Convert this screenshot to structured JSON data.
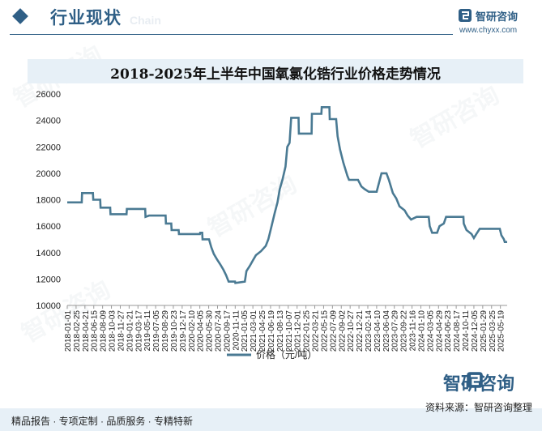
{
  "header": {
    "section_title": "行业现状",
    "section_en": "Chain",
    "brand_name": "智研咨询",
    "brand_url": "www.chyxx.com"
  },
  "chart_title": "2018-2025年上半年中国氧氯化锆行业价格走势情况",
  "legend_label": "价格（元/吨）",
  "watermark": "智研咨询",
  "footer": {
    "left": "精品报告 · 专项定制 · 品质服务 · 专精特新",
    "right": "资料来源：智研咨询整理",
    "brand": "智研咨询"
  },
  "colors": {
    "line": "#4a7a93",
    "accent": "#2f5f86"
  },
  "chart_data": {
    "type": "line",
    "title": "2018-2025年上半年中国氧氯化锆行业价格走势情况",
    "ylim": [
      10000,
      26000
    ],
    "yticks": [
      10000,
      12000,
      14000,
      16000,
      18000,
      20000,
      22000,
      24000,
      26000
    ],
    "xlim": [
      "2018-01-01",
      "2025-06-30"
    ],
    "x_ticks": [
      "2018-01-01",
      "2018-02-25",
      "2018-04-21",
      "2018-06-15",
      "2018-08-09",
      "2018-10-03",
      "2018-11-27",
      "2019-01-21",
      "2019-03-17",
      "2019-05-11",
      "2019-07-05",
      "2019-08-29",
      "2019-10-23",
      "2019-12-17",
      "2020-02-10",
      "2020-04-05",
      "2020-05-30",
      "2020-07-24",
      "2020-09-17",
      "2020-11-11",
      "2021-01-05",
      "2021-03-01",
      "2021-04-25",
      "2021-06-19",
      "2021-08-13",
      "2021-10-07",
      "2021-12-01",
      "2022-01-25",
      "2022-03-21",
      "2022-05-15",
      "2022-07-09",
      "2022-09-02",
      "2022-10-27",
      "2022-12-21",
      "2023-02-14",
      "2023-04-10",
      "2023-06-04",
      "2023-07-29",
      "2023-09-22",
      "2023-11-16",
      "2024-01-10",
      "2024-03-05",
      "2024-04-29",
      "2024-06-23",
      "2024-08-17",
      "2024-10-11",
      "2024-12-05",
      "2025-01-29",
      "2025-03-25",
      "2025-05-19"
    ],
    "x_ticklabels": [
      "2018-01-01",
      "2018-02-25",
      "2018-04-21",
      "2018-06-15",
      "2018-08-09",
      "2018-10-03",
      "2018-11-27",
      "2019-01-21",
      "2019-03-17",
      "2019-05-11",
      "2019-07-05",
      "2019-08-29",
      "2019-10-23",
      "2019-12-17",
      "2020-02-10",
      "2020-04-05",
      "2020-05-30",
      "2020-07-24",
      "2020-09-17",
      "2020-11-11",
      "2021-01-05",
      "2021-03-01",
      "2021-04-25",
      "2021-06-19",
      "2021-08-13",
      "2021-10-07",
      "2021-12-01",
      "2022-01-25",
      "2022-03-21",
      "2022-05-15",
      "2022-07-09",
      "2022-09-02",
      "2022-10-27",
      "2022-12-21",
      "2023-02-14",
      "2023-04-10",
      "2023-06-04",
      "2023-07-29",
      "2023-09-22",
      "2023-11-16",
      "2024-01-10",
      "2024-03-05",
      "2024-04-29",
      "2024-06-23",
      "2024-08-17",
      "2024-10-11",
      "2024-12-05",
      "2025-01-29",
      "2025-03-25",
      "2025-05-19"
    ],
    "series": [
      {
        "name": "价格（元/吨）",
        "points": [
          [
            "2018-01-01",
            17800
          ],
          [
            "2018-04-01",
            17800
          ],
          [
            "2018-04-03",
            18500
          ],
          [
            "2018-06-10",
            18500
          ],
          [
            "2018-06-12",
            18000
          ],
          [
            "2018-07-25",
            18000
          ],
          [
            "2018-07-27",
            17400
          ],
          [
            "2018-09-25",
            17400
          ],
          [
            "2018-09-27",
            16900
          ],
          [
            "2019-01-05",
            16900
          ],
          [
            "2019-01-07",
            17300
          ],
          [
            "2019-05-01",
            17300
          ],
          [
            "2019-05-03",
            16700
          ],
          [
            "2019-05-25",
            16800
          ],
          [
            "2019-09-05",
            16800
          ],
          [
            "2019-09-07",
            16200
          ],
          [
            "2019-10-10",
            16200
          ],
          [
            "2019-10-12",
            15700
          ],
          [
            "2019-11-25",
            15700
          ],
          [
            "2019-11-27",
            15400
          ],
          [
            "2020-04-05",
            15400
          ],
          [
            "2020-04-07",
            15500
          ],
          [
            "2020-04-20",
            15500
          ],
          [
            "2020-04-22",
            15000
          ],
          [
            "2020-06-01",
            15000
          ],
          [
            "2020-06-15",
            14400
          ],
          [
            "2020-07-01",
            13900
          ],
          [
            "2020-07-20",
            13500
          ],
          [
            "2020-08-10",
            13100
          ],
          [
            "2020-08-30",
            12700
          ],
          [
            "2020-09-15",
            12300
          ],
          [
            "2020-10-01",
            11800
          ],
          [
            "2020-11-10",
            11800
          ],
          [
            "2020-11-12",
            11700
          ],
          [
            "2021-01-10",
            11800
          ],
          [
            "2021-01-20",
            12600
          ],
          [
            "2021-02-10",
            13000
          ],
          [
            "2021-03-01",
            13400
          ],
          [
            "2021-03-20",
            13800
          ],
          [
            "2021-04-20",
            14100
          ],
          [
            "2021-05-20",
            14500
          ],
          [
            "2021-06-05",
            15000
          ],
          [
            "2021-06-25",
            16000
          ],
          [
            "2021-07-15",
            17000
          ],
          [
            "2021-08-01",
            17800
          ],
          [
            "2021-08-15",
            18800
          ],
          [
            "2021-09-01",
            19500
          ],
          [
            "2021-09-20",
            20500
          ],
          [
            "2021-10-01",
            22000
          ],
          [
            "2021-10-15",
            22300
          ],
          [
            "2021-10-25",
            24200
          ],
          [
            "2021-12-10",
            24200
          ],
          [
            "2021-12-12",
            23000
          ],
          [
            "2022-03-01",
            23000
          ],
          [
            "2022-03-03",
            24500
          ],
          [
            "2022-05-01",
            24500
          ],
          [
            "2022-05-03",
            25000
          ],
          [
            "2022-06-20",
            25000
          ],
          [
            "2022-06-22",
            24100
          ],
          [
            "2022-08-01",
            24100
          ],
          [
            "2022-08-10",
            22800
          ],
          [
            "2022-08-25",
            21800
          ],
          [
            "2022-09-15",
            20800
          ],
          [
            "2022-10-10",
            19800
          ],
          [
            "2022-10-20",
            19500
          ],
          [
            "2022-12-15",
            19500
          ],
          [
            "2023-01-05",
            19000
          ],
          [
            "2023-01-25",
            18800
          ],
          [
            "2023-02-20",
            18600
          ],
          [
            "2023-04-10",
            18600
          ],
          [
            "2023-05-10",
            20000
          ],
          [
            "2023-06-10",
            20000
          ],
          [
            "2023-06-25",
            19500
          ],
          [
            "2023-07-20",
            18500
          ],
          [
            "2023-08-10",
            18100
          ],
          [
            "2023-08-30",
            17500
          ],
          [
            "2023-10-01",
            17200
          ],
          [
            "2023-10-20",
            16800
          ],
          [
            "2023-11-10",
            16500
          ],
          [
            "2023-12-15",
            16700
          ],
          [
            "2024-02-28",
            16700
          ],
          [
            "2024-03-05",
            16000
          ],
          [
            "2024-03-20",
            15500
          ],
          [
            "2024-04-20",
            15500
          ],
          [
            "2024-05-05",
            16000
          ],
          [
            "2024-06-01",
            16200
          ],
          [
            "2024-06-15",
            16700
          ],
          [
            "2024-10-01",
            16700
          ],
          [
            "2024-10-03",
            16200
          ],
          [
            "2024-10-20",
            15700
          ],
          [
            "2024-11-20",
            15400
          ],
          [
            "2024-12-05",
            15100
          ],
          [
            "2024-12-20",
            15400
          ],
          [
            "2025-01-10",
            15800
          ],
          [
            "2025-05-15",
            15800
          ],
          [
            "2025-05-25",
            15300
          ],
          [
            "2025-06-10",
            15000
          ],
          [
            "2025-06-15",
            14800
          ],
          [
            "2025-06-30",
            14800
          ]
        ]
      }
    ]
  }
}
